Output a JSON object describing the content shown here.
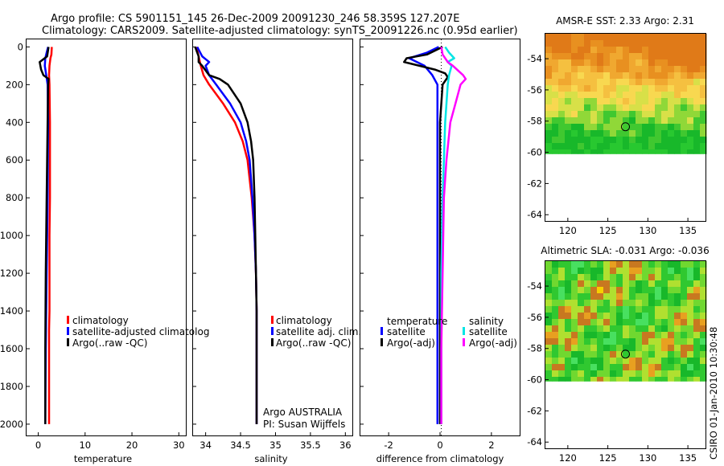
{
  "titles": {
    "line1": "Argo profile: CS 5901151_145 26-Dec-2009 20091230_246 58.359S 127.207E",
    "line2": "Climatology: CARS2009. Satellite-adjusted climatology: synTS_20091226.nc (0.95d earlier)"
  },
  "chart_data": [
    {
      "type": "line",
      "id": "temperature",
      "xlabel": "temperature",
      "ylabel": "",
      "xlim": [
        -2.5,
        31.5
      ],
      "ylim": [
        2060,
        -40
      ],
      "xticks": [
        0,
        10,
        20,
        30
      ],
      "yticks": [
        0,
        200,
        400,
        600,
        800,
        1000,
        1200,
        1400,
        1600,
        1800,
        2000
      ],
      "legend": {
        "placement": "lower-right",
        "entries": [
          "climatology",
          "satellite-adjusted climatolog",
          "Argo(..raw -QC)"
        ]
      },
      "series": [
        {
          "name": "climatology",
          "color": "#ff0000",
          "depth": [
            0,
            40,
            60,
            100,
            150,
            200,
            400,
            800,
            1000,
            1400,
            1500,
            2000
          ],
          "values": [
            2.9,
            2.8,
            2.6,
            2.4,
            2.3,
            2.4,
            2.5,
            2.5,
            2.4,
            2.4,
            2.3,
            2.3
          ]
        },
        {
          "name": "satellite-adjusted climatology",
          "color": "#0000ff",
          "depth": [
            0,
            30,
            60,
            100,
            150,
            200,
            400,
            800,
            1200,
            1600,
            2000
          ],
          "values": [
            2.1,
            1.8,
            1.5,
            1.4,
            1.7,
            2.0,
            2.1,
            2.0,
            1.8,
            1.6,
            1.5
          ]
        },
        {
          "name": "Argo(..raw -QC)",
          "color": "#000000",
          "depth": [
            0,
            50,
            80,
            120,
            150,
            170,
            200,
            400,
            800,
            1200,
            1600,
            2000
          ],
          "values": [
            2.2,
            1.9,
            0.3,
            0.6,
            1.1,
            2.2,
            2.1,
            2.0,
            1.8,
            1.6,
            1.5,
            1.5
          ]
        }
      ]
    },
    {
      "type": "line",
      "id": "salinity",
      "xlabel": "salinity",
      "ylabel": "",
      "xlim": [
        33.82,
        36.1
      ],
      "ylim": [
        2060,
        -40
      ],
      "xticks": [
        34,
        34.5,
        35,
        35.5,
        36
      ],
      "yticks": [],
      "legend": {
        "placement": "lower-right",
        "entries": [
          "climatology",
          "satellite adj. clim.",
          "Argo(..raw -QC)"
        ]
      },
      "annotation": [
        "Argo AUSTRALIA",
        "PI: Susan Wijffels"
      ],
      "series": [
        {
          "name": "climatology",
          "color": "#ff0000",
          "depth": [
            0,
            50,
            100,
            150,
            200,
            300,
            400,
            500,
            600,
            800,
            1000,
            1200,
            1400,
            2000
          ],
          "values": [
            33.87,
            33.9,
            33.93,
            33.97,
            34.05,
            34.25,
            34.42,
            34.53,
            34.6,
            34.66,
            34.7,
            34.72,
            34.73,
            34.73
          ]
        },
        {
          "name": "satellite adj. clim.",
          "color": "#0000ff",
          "depth": [
            0,
            50,
            80,
            100,
            150,
            200,
            300,
            400,
            500,
            600,
            800,
            1000,
            1200,
            1400,
            2000
          ],
          "values": [
            33.88,
            33.95,
            34.05,
            34.0,
            34.05,
            34.15,
            34.35,
            34.5,
            34.58,
            34.63,
            34.67,
            34.7,
            34.72,
            34.73,
            34.73
          ]
        },
        {
          "name": "Argo(..raw -QC)",
          "color": "#000000",
          "depth": [
            0,
            50,
            80,
            100,
            150,
            170,
            200,
            300,
            400,
            500,
            600,
            800,
            1000,
            1200,
            1400,
            2000
          ],
          "values": [
            33.85,
            33.9,
            33.9,
            33.95,
            34.05,
            34.2,
            34.32,
            34.5,
            34.6,
            34.65,
            34.68,
            34.7,
            34.71,
            34.72,
            34.73,
            34.73
          ]
        }
      ]
    },
    {
      "type": "line",
      "id": "difference",
      "xlabel": "difference from climatology",
      "ylabel": "",
      "xlim": [
        -3.1,
        3.1
      ],
      "ylim": [
        2060,
        -40
      ],
      "xticks": [
        -2,
        0,
        2
      ],
      "yticks": [],
      "legend": {
        "placement": "lower-right",
        "groups": [
          "temperature",
          "salinity"
        ],
        "entries": [
          "satellite",
          "Argo(-adj)",
          "satellite",
          "Argo(-adj)"
        ]
      },
      "series": [
        {
          "name": "temperature satellite",
          "color": "#0000ff",
          "depth": [
            0,
            30,
            60,
            100,
            150,
            200,
            400,
            800,
            1200,
            1600,
            2000
          ],
          "values": [
            -0.05,
            -0.5,
            -1.2,
            -0.6,
            -0.3,
            -0.1,
            -0.1,
            -0.1,
            -0.1,
            -0.1,
            -0.1
          ]
        },
        {
          "name": "temperature Argo(-adj)",
          "color": "#000000",
          "depth": [
            0,
            40,
            60,
            80,
            100,
            120,
            140,
            160,
            200,
            400,
            800,
            1200,
            1600,
            2000
          ],
          "values": [
            0.1,
            -0.5,
            -1.3,
            -1.4,
            -0.8,
            -0.2,
            0.2,
            0.3,
            0.1,
            0.0,
            0.0,
            0.0,
            0.0,
            0.0
          ]
        },
        {
          "name": "salinity satellite",
          "color": "#00e5e5",
          "depth": [
            0,
            30,
            60,
            80,
            100,
            150,
            200,
            400,
            800,
            1200,
            1600,
            2000
          ],
          "values": [
            0.2,
            0.35,
            0.55,
            0.3,
            0.45,
            0.35,
            0.3,
            0.2,
            0.1,
            0.05,
            0.05,
            0.05
          ]
        },
        {
          "name": "salinity Argo(-adj)",
          "color": "#ff00ff",
          "depth": [
            0,
            40,
            80,
            100,
            150,
            170,
            200,
            300,
            400,
            600,
            800,
            1200,
            1600,
            2000
          ],
          "values": [
            0.05,
            0.1,
            0.3,
            0.5,
            0.9,
            1.0,
            0.8,
            0.6,
            0.4,
            0.25,
            0.15,
            0.1,
            0.05,
            0.05
          ]
        }
      ]
    },
    {
      "type": "heatmap",
      "id": "sst-map",
      "title": "AMSR-E SST: 2.33 Argo: 2.31",
      "xlim": [
        117.2,
        137.2
      ],
      "ylim": [
        -64.4,
        -52.4
      ],
      "xticks": [
        120,
        125,
        130,
        135
      ],
      "yticks": [
        -54,
        -56,
        -58,
        -60,
        -62,
        -64
      ],
      "data_southern_limit": -60.1,
      "marker": {
        "lon": 127.2,
        "lat": -58.36
      }
    },
    {
      "type": "heatmap",
      "id": "sla-map",
      "title": "Altimetric SLA: -0.031 Argo: -0.036",
      "xlim": [
        117.2,
        137.2
      ],
      "ylim": [
        -64.4,
        -52.4
      ],
      "xticks": [
        120,
        125,
        130,
        135
      ],
      "yticks": [
        -54,
        -56,
        -58,
        -60,
        -62,
        -64
      ],
      "data_southern_limit": -60.1,
      "marker": {
        "lon": 127.2,
        "lat": -58.36
      }
    }
  ],
  "sst_colors": [
    "#e07a18",
    "#e89020",
    "#f0a830",
    "#f5c040",
    "#f8d850",
    "#d8e048",
    "#90d838",
    "#40c830",
    "#18b82a",
    "#28c830"
  ],
  "sla_colors": [
    "#f7d000",
    "#e8a020",
    "#c87820",
    "#b0e030",
    "#70d830",
    "#30c830",
    "#18b82a",
    "#48e060"
  ],
  "credit": "CSIRO 01-Jan-2010 10:30:48"
}
